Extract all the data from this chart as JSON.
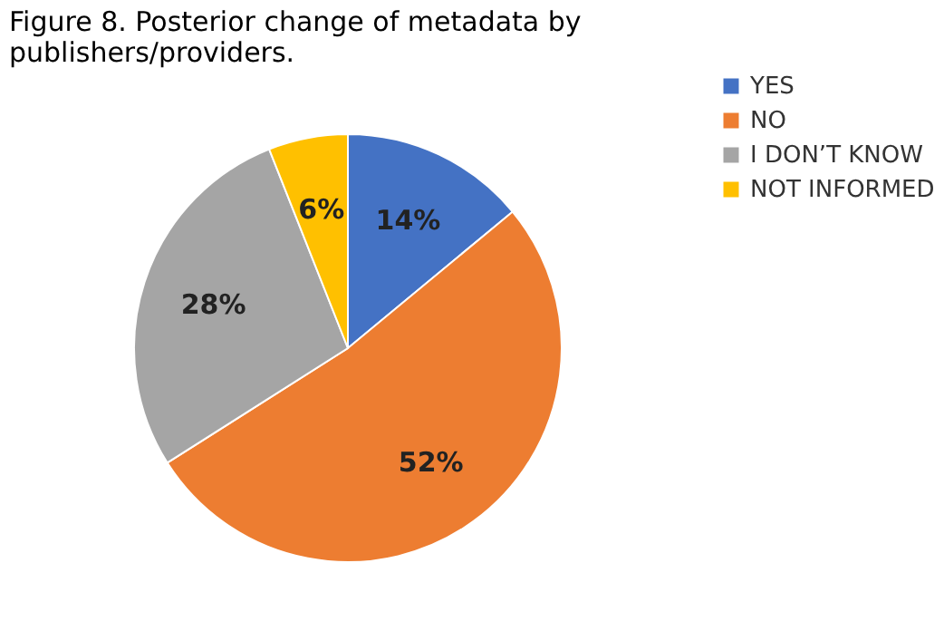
{
  "chart_data": {
    "type": "pie",
    "title": "Figure 8. Posterior change of metadata by publishers/providers.",
    "categories": [
      "YES",
      "NO",
      "I DON’T KNOW",
      "NOT INFORMED"
    ],
    "values": [
      14,
      52,
      28,
      6
    ],
    "colors": [
      "#4472c4",
      "#ed7d31",
      "#a5a5a5",
      "#ffc000"
    ],
    "value_labels": [
      "14%",
      "52%",
      "28%",
      "6%"
    ],
    "legend": "right"
  }
}
